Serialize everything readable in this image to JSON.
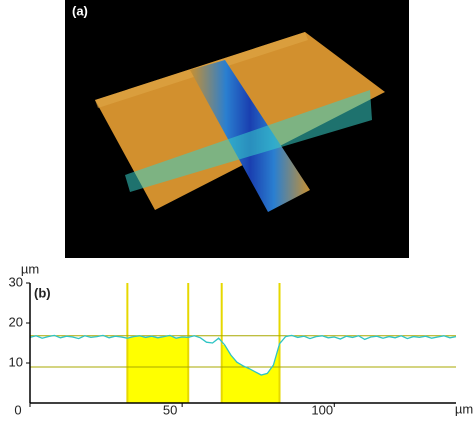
{
  "panel_a": {
    "label": "(a)"
  },
  "chart_data": {
    "type": "line",
    "label": "(b)",
    "ylabel": "µm",
    "xlabel": "µm",
    "x": [
      0,
      2,
      4,
      6,
      8,
      10,
      12,
      14,
      16,
      18,
      20,
      22,
      24,
      26,
      28,
      30,
      32,
      34,
      36,
      38,
      40,
      42,
      44,
      46,
      48,
      50,
      52,
      54,
      56,
      58,
      60,
      62,
      64,
      66,
      68,
      70,
      72,
      74,
      76,
      78,
      80,
      82,
      84,
      86,
      88,
      90,
      92,
      94,
      96,
      98,
      100,
      102,
      104,
      106,
      108,
      110,
      112,
      114,
      116,
      118,
      120,
      122,
      124,
      126,
      128,
      130,
      132,
      134,
      136,
      138,
      140
    ],
    "series": [
      {
        "color": "#2ec4c4",
        "values": [
          16.4,
          16.8,
          16.2,
          16.6,
          16.9,
          16.3,
          16.7,
          16.5,
          16.1,
          16.8,
          16.4,
          16.6,
          16.9,
          16.3,
          16.7,
          16.5,
          16.2,
          16.6,
          16.8,
          16.4,
          16.7,
          16.3,
          16.6,
          16.9,
          16.2,
          16.5,
          16.4,
          16.8,
          16.3,
          15.2,
          15.0,
          16.2,
          14.5,
          12.0,
          10.2,
          9.3,
          8.6,
          7.8,
          7.0,
          7.4,
          9.5,
          14.8,
          16.6,
          16.9,
          16.4,
          16.7,
          16.1,
          16.6,
          16.8,
          16.3,
          16.5,
          16.0,
          16.7,
          16.4,
          16.8,
          15.9,
          16.5,
          16.7,
          16.2,
          16.6,
          16.3,
          16.8,
          16.1,
          16.6,
          16.4,
          16.7,
          16.2,
          16.5,
          16.8,
          16.3,
          16.6
        ]
      }
    ],
    "highlight_regions": [
      [
        32,
        52
      ],
      [
        63,
        82
      ]
    ],
    "highlight_color": "#ffff00",
    "cursor_color": "#e6d800",
    "reference_lines": [
      16.8,
      9
    ],
    "reference_color": "#a8a800",
    "xlim": [
      0,
      140
    ],
    "ylim": [
      0,
      30
    ],
    "xticks": [
      0,
      50,
      100
    ],
    "yticks": [
      10,
      20,
      30
    ]
  }
}
